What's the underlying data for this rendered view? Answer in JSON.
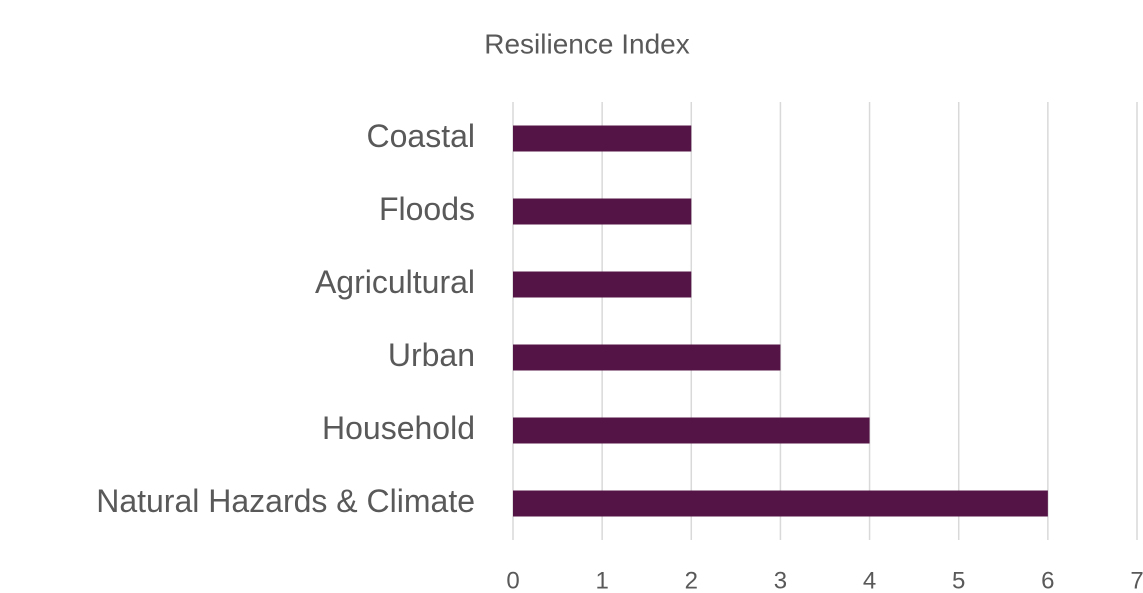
{
  "chart_data": {
    "type": "barh",
    "title": "Resilience Index",
    "categories": [
      "Coastal",
      "Floods",
      "Agricultural",
      "Urban",
      "Household",
      "Natural Hazards & Climate"
    ],
    "values": [
      2,
      2,
      2,
      3,
      4,
      6
    ],
    "color": "#541446",
    "xlim": [
      0,
      7
    ],
    "xticks": [
      0,
      1,
      2,
      3,
      4,
      5,
      6,
      7
    ],
    "grid": true
  }
}
